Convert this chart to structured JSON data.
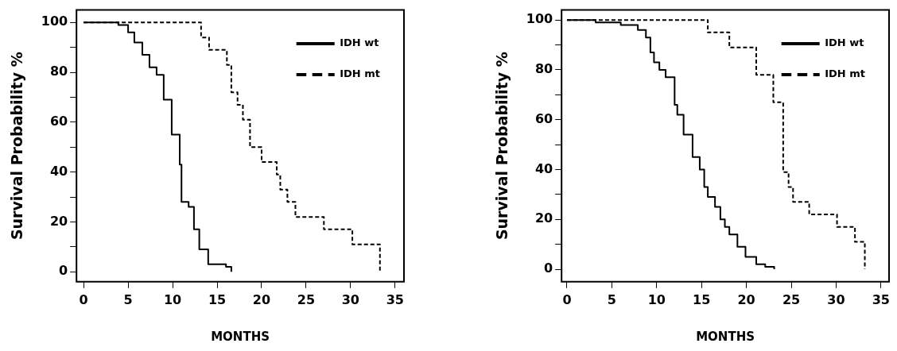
{
  "chart_data": [
    {
      "type": "step",
      "xlabel": "MONTHS",
      "ylabel": "Survival Probability %",
      "xlim": [
        -0.8,
        36
      ],
      "ylim": [
        -4,
        105
      ],
      "xticks": [
        0,
        5,
        10,
        15,
        20,
        25,
        30,
        35
      ],
      "yticks": [
        0,
        {
          "value": 10,
          "label": null
        },
        20,
        {
          "value": 30,
          "label": null
        },
        40,
        {
          "value": 50,
          "label": null
        },
        60,
        {
          "value": 70,
          "label": null
        },
        80,
        {
          "value": 90,
          "label": null
        },
        100
      ],
      "legend": "top right",
      "grid": false,
      "series": [
        {
          "name": "IDH wt",
          "color": "#000000",
          "line_style": "solid",
          "x": [
            0,
            3.9,
            5.0,
            5.7,
            6.6,
            7.4,
            8.2,
            9.0,
            9.9,
            10.8,
            11.0,
            11.8,
            12.4,
            13.0,
            14.0,
            16.0,
            16.6
          ],
          "values": [
            100,
            99,
            96,
            92,
            87,
            82,
            79,
            69,
            55,
            43,
            28,
            26,
            17,
            9,
            3,
            2,
            0
          ]
        },
        {
          "name": "IDH mt",
          "color": "#000000",
          "line_style": "dashed",
          "x": [
            0,
            13.2,
            14.1,
            16.1,
            16.6,
            17.3,
            17.9,
            18.7,
            20.0,
            21.7,
            22.1,
            22.9,
            23.8,
            27.0,
            30.2,
            33.3
          ],
          "values": [
            100,
            94,
            89,
            83,
            72,
            67,
            61,
            50,
            44,
            39,
            33,
            28,
            22,
            17,
            11,
            0
          ]
        }
      ]
    },
    {
      "type": "step",
      "xlabel": "MONTHS",
      "ylabel": "Survival Probability %",
      "xlim": [
        -0.6,
        35.9
      ],
      "ylim": [
        -5,
        104
      ],
      "xticks": [
        0,
        5,
        10,
        15,
        20,
        25,
        30,
        35
      ],
      "yticks": [
        0,
        {
          "value": 10,
          "label": null
        },
        20,
        {
          "value": 30,
          "label": null
        },
        40,
        {
          "value": 50,
          "label": null
        },
        60,
        {
          "value": 70,
          "label": null
        },
        80,
        {
          "value": 90,
          "label": null
        },
        100
      ],
      "legend": "top right",
      "grid": false,
      "series": [
        {
          "name": "IDH wt",
          "color": "#000000",
          "line_style": "solid",
          "x": [
            0,
            3.2,
            6.0,
            7.9,
            8.8,
            9.3,
            9.7,
            10.3,
            11.0,
            12.0,
            12.3,
            13.0,
            14.0,
            14.8,
            15.3,
            15.7,
            16.5,
            17.1,
            17.6,
            18.1,
            19.0,
            19.9,
            21.1,
            22.1,
            23.1
          ],
          "values": [
            100,
            99,
            98,
            96,
            93,
            87,
            83,
            80,
            77,
            66,
            62,
            54,
            45,
            40,
            33,
            29,
            25,
            20,
            17,
            14,
            9,
            5,
            2,
            1,
            0
          ]
        },
        {
          "name": "IDH mt",
          "color": "#000000",
          "line_style": "dashed",
          "x": [
            0,
            15.7,
            18.1,
            21.1,
            23.0,
            24.1,
            24.7,
            25.2,
            27.0,
            30.1,
            32.1,
            33.2
          ],
          "values": [
            100,
            95,
            89,
            78,
            67,
            39,
            33,
            27,
            22,
            17,
            11,
            0
          ]
        }
      ]
    }
  ]
}
